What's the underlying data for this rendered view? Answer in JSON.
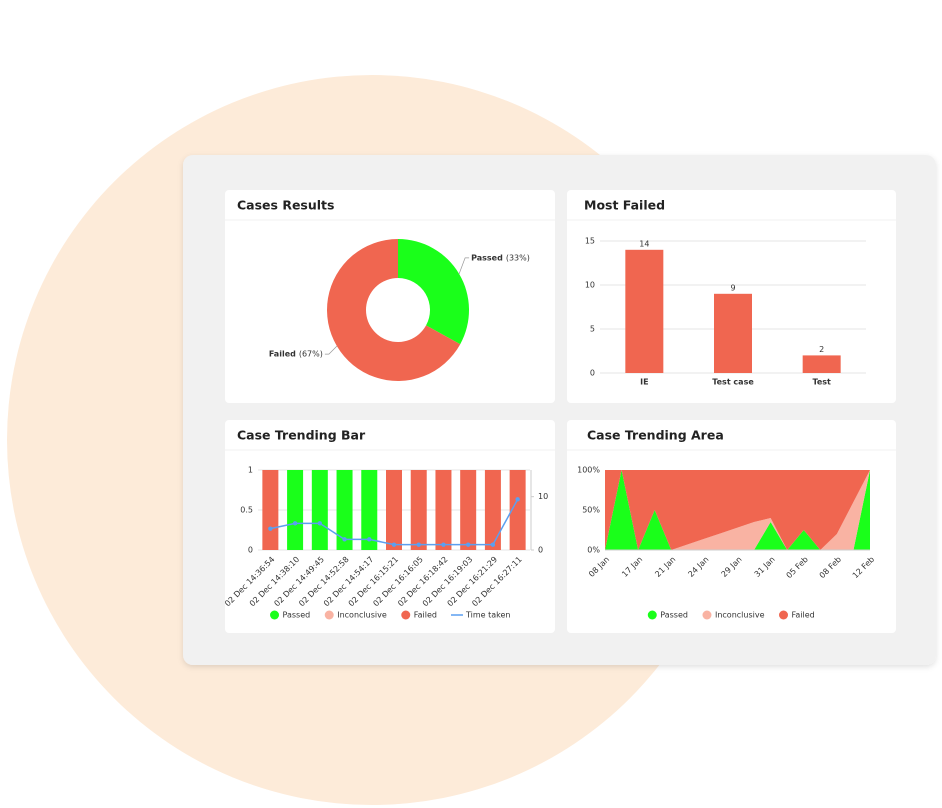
{
  "chart_data": [
    {
      "type": "pie",
      "title": "Cases Results",
      "donut": true,
      "categories": [
        "Passed",
        "Failed"
      ],
      "values": [
        33,
        67
      ],
      "value_labels": [
        "(33%)",
        "(67%)"
      ],
      "colors": [
        "#1aff1a",
        "#f06650"
      ]
    },
    {
      "type": "bar",
      "title": "Most Failed",
      "categories": [
        "IE",
        "Test case",
        "Test"
      ],
      "values": [
        14,
        9,
        2
      ],
      "color": "#f06650",
      "ylim": [
        0,
        15
      ],
      "yticks": [
        0,
        5,
        10,
        15
      ],
      "grid": true
    },
    {
      "type": "stacked-bar",
      "title": "Case Trending Bar",
      "categories": [
        "02 Dec 14:36:54",
        "02 Dec 14:38:10",
        "02 Dec 14:49:45",
        "02 Dec 14:52:58",
        "02 Dec 14:54:17",
        "02 Dec 16:15:21",
        "02 Dec 16:16:05",
        "02 Dec 16:18:42",
        "02 Dec 16:19:03",
        "02 Dec 16:21:29",
        "02 Dec 16:27:11"
      ],
      "series": [
        {
          "name": "Passed",
          "color": "#1aff1a",
          "values": [
            0,
            1,
            1,
            1,
            1,
            0,
            0,
            0,
            0,
            0,
            0
          ]
        },
        {
          "name": "Inconclusive",
          "color": "#f9b3a3",
          "values": [
            0,
            0,
            0,
            0,
            0,
            0,
            0,
            0,
            0,
            0,
            0
          ]
        },
        {
          "name": "Failed",
          "color": "#f06650",
          "values": [
            1,
            0,
            0,
            0,
            0,
            1,
            1,
            1,
            1,
            1,
            1
          ]
        },
        {
          "name": "Time taken",
          "color": "#5b9ff0",
          "type": "line",
          "axis": "y2",
          "values": [
            4,
            5,
            5,
            2,
            2,
            1,
            1,
            1,
            1,
            1,
            9.5
          ]
        }
      ],
      "ylim": [
        0,
        1
      ],
      "yticks": [
        0,
        0.5,
        1
      ],
      "y2lim": [
        0,
        15
      ],
      "y2ticks": [
        0,
        10
      ],
      "grid": true
    },
    {
      "type": "area",
      "title": "Case Trending Area",
      "categories": [
        "08 Jan",
        null,
        "17 Jan",
        null,
        "21 Jan",
        null,
        "24 Jan",
        null,
        "29 Jan",
        null,
        "31 Jan",
        null,
        "05 Feb",
        null,
        "08 Feb",
        null,
        "12 Feb"
      ],
      "series": [
        {
          "name": "Passed",
          "color": "#1aff1a",
          "values": [
            0,
            100,
            0,
            50,
            0,
            0,
            0,
            0,
            0,
            0,
            35,
            0,
            25,
            0,
            0,
            0,
            100
          ]
        },
        {
          "name": "Inconclusive",
          "color": "#f9b3a3",
          "values": [
            0,
            0,
            0,
            0,
            0,
            7,
            14,
            21,
            28,
            35,
            5,
            0,
            0,
            0,
            20,
            60,
            0
          ]
        },
        {
          "name": "Failed",
          "color": "#f06650",
          "values": [
            100,
            0,
            100,
            50,
            100,
            93,
            86,
            79,
            72,
            65,
            60,
            100,
            75,
            100,
            80,
            40,
            0
          ]
        }
      ],
      "ylim": [
        0,
        100
      ],
      "yticks": [
        {
          "value": 0,
          "label": "0%"
        },
        {
          "value": 50,
          "label": "50%"
        },
        {
          "value": 100,
          "label": "100%"
        }
      ],
      "grid": false
    }
  ]
}
